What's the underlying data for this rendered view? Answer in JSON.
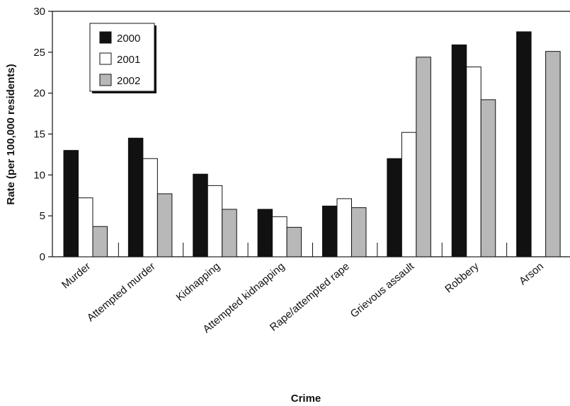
{
  "chart_data": {
    "type": "bar",
    "title": "",
    "xlabel": "Crime",
    "ylabel": "Rate (per 100,000 residents)",
    "ylim": [
      0,
      30
    ],
    "yticks": [
      0,
      5,
      10,
      15,
      20,
      25,
      30
    ],
    "categories": [
      "Murder",
      "Attempted murder",
      "Kidnapping",
      "Attempted kidnapping",
      "Rape/attempted rape",
      "Grievous assault",
      "Robbery",
      "Arson"
    ],
    "series": [
      {
        "name": "2000",
        "color": "#111111",
        "values": [
          13.0,
          14.5,
          10.1,
          5.8,
          6.2,
          12.0,
          25.9,
          27.5
        ]
      },
      {
        "name": "2001",
        "color": "#ffffff",
        "values": [
          7.2,
          12.0,
          8.7,
          4.9,
          7.1,
          15.2,
          23.2,
          null
        ]
      },
      {
        "name": "2002",
        "color": "#b8b8b8",
        "values": [
          3.7,
          7.7,
          5.8,
          3.6,
          6.0,
          24.4,
          19.2,
          25.1
        ]
      }
    ],
    "legend_position": "top-left",
    "grid": false
  }
}
